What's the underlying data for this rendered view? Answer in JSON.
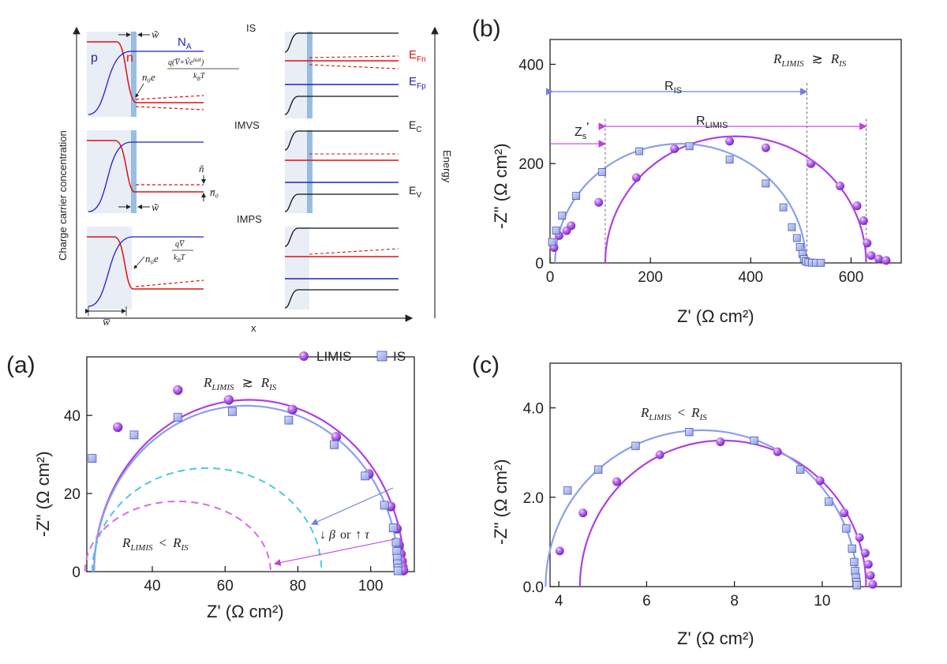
{
  "colors": {
    "limis": "#b040e0",
    "limis_marker": "#a855e8",
    "is": "#8aa0ea",
    "is_marker": "#a8b6f0",
    "dashed_cyan": "#4fc6e6",
    "dashed_magenta": "#d56ce8",
    "red": "#e01010",
    "blue": "#2222c0",
    "shade": "#e9edf6",
    "band": "#7faedb"
  },
  "panel_labels": {
    "a": "(a)",
    "b": "(b)",
    "c": "(c)"
  },
  "schematic": {
    "ylabel": "Charge carrier concentration",
    "xlabel": "x",
    "energy_label": "Energy",
    "row_labels": [
      "IS",
      "IMVS",
      "IMPS"
    ],
    "p_label": "p",
    "n_label": "n",
    "NA_label": "N",
    "NA_sub": "A",
    "w_tilde": "w̃",
    "w_bar": "w̅",
    "n_tilde": "ñ",
    "n0_bar": "n̅₀",
    "is_formula_prefix": "n₀e",
    "is_formula_num": "q(V̅+Ṽe",
    "is_formula_num_sup": "iωt",
    "is_formula_den": "k",
    "is_formula_den_sub": "B",
    "is_formula_den_tail": "T",
    "imps_formula_prefix": "n₀e",
    "imps_formula_num": "qV̅",
    "imps_formula_den": "k",
    "imps_formula_den_sub": "B",
    "imps_formula_den_tail": "T",
    "EFn": "E",
    "EFn_sub": "Fn",
    "EFp": "E",
    "EFp_sub": "Fp",
    "EC": "E",
    "EC_sub": "C",
    "EV": "E",
    "EV_sub": "V"
  },
  "chart_data": [
    {
      "panel": "a",
      "type": "scatter",
      "xlabel": "Z' (Ω cm²)",
      "ylabel": "-Z\" (Ω cm²)",
      "xlim": [
        22,
        112
      ],
      "ylim": [
        0,
        55
      ],
      "xticks": [
        40,
        60,
        80,
        100
      ],
      "yticks": [
        0,
        20,
        40
      ],
      "legend": [
        "LIMIS",
        "IS"
      ],
      "legend_position": "top-right",
      "annotations": [
        "R_LIMIS ≳ R_IS",
        "R_LIMIS < R_IS",
        "↓ β or ↑ τ"
      ],
      "annot_text": {
        "r1": "R",
        "r1_sub": "LIMIS",
        "approx": "≳",
        "r2": "R",
        "r2_sub": "IS",
        "lt": "<",
        "arrow_label_a": "↓ β",
        "arrow_label_or": "or",
        "arrow_label_b": "↑ τ"
      },
      "series": [
        {
          "name": "LIMIS",
          "marker": "sphere",
          "points": [
            [
              30.5,
              37
            ],
            [
              47,
              46.5
            ],
            [
              61,
              44
            ],
            [
              78.5,
              41.5
            ],
            [
              90.5,
              34.5
            ],
            [
              99.5,
              25
            ],
            [
              105.5,
              16.7
            ],
            [
              107.2,
              11
            ],
            [
              107.8,
              6.8
            ],
            [
              108.3,
              4.5
            ],
            [
              108.6,
              2.7
            ],
            [
              108.8,
              1.2
            ],
            [
              109,
              0.3
            ]
          ],
          "fit": {
            "x1": 24,
            "x2": 109.2,
            "ymax": 44
          }
        },
        {
          "name": "IS",
          "marker": "square",
          "points": [
            [
              23.5,
              29
            ],
            [
              35,
              35
            ],
            [
              47,
              39.5
            ],
            [
              62,
              41
            ],
            [
              77.5,
              38.8
            ],
            [
              90,
              32.5
            ],
            [
              98.5,
              24.5
            ],
            [
              103.8,
              17
            ],
            [
              106.2,
              11.2
            ],
            [
              107,
              7.5
            ],
            [
              107.2,
              5.2
            ],
            [
              107.3,
              3.4
            ],
            [
              107.4,
              2
            ],
            [
              107.5,
              0.9
            ],
            [
              107.5,
              0.2
            ]
          ],
          "fit": {
            "x1": 24,
            "x2": 107.6,
            "ymax": 42.5
          }
        },
        {
          "name": "",
          "style": "dashed",
          "color": "dashed_cyan",
          "fit": {
            "x1": 23.5,
            "x2": 86.5,
            "ymax": 26.5
          }
        },
        {
          "name": "",
          "style": "dashed",
          "color": "dashed_magenta",
          "fit": {
            "x1": 21.5,
            "x2": 72.5,
            "ymax": 18
          }
        }
      ]
    },
    {
      "panel": "b",
      "type": "scatter",
      "xlabel": "Z' (Ω cm²)",
      "ylabel": "-Z\" (Ω cm²)",
      "xlim": [
        0,
        700
      ],
      "ylim": [
        0,
        450
      ],
      "xticks": [
        0,
        200,
        400,
        600
      ],
      "yticks": [
        0,
        200,
        400
      ],
      "annotations": [
        "R_LIMIS ≳ R_IS",
        "R_IS",
        "R_LIMIS",
        "Z_s'"
      ],
      "annot_text": {
        "r1": "R",
        "r1_sub": "LIMIS",
        "approx": "≳",
        "r2": "R",
        "r2_sub": "IS",
        "ris": "R",
        "ris_sub": "IS",
        "rlimis": "R",
        "rlimis_sub": "LIMIS",
        "zs": "Z",
        "zs_sub": "s",
        "zs_prime": "'"
      },
      "series": [
        {
          "name": "LIMIS",
          "marker": "sphere",
          "points": [
            [
              8,
              31
            ],
            [
              18,
              55
            ],
            [
              33,
              65
            ],
            [
              42,
              75
            ],
            [
              97,
              122
            ],
            [
              172,
              172
            ],
            [
              248,
              230
            ],
            [
              358,
              245
            ],
            [
              430,
              232
            ],
            [
              520,
              200
            ],
            [
              578,
              155
            ],
            [
              612,
              115
            ],
            [
              625,
              85
            ],
            [
              632,
              40
            ],
            [
              640,
              15
            ],
            [
              655,
              8
            ],
            [
              670,
              5
            ]
          ],
          "fit": {
            "x1": 110,
            "x2": 630,
            "ymax": 255
          }
        },
        {
          "name": "IS",
          "marker": "square",
          "points": [
            [
              4,
              42
            ],
            [
              12,
              65
            ],
            [
              24,
              95
            ],
            [
              52,
              135
            ],
            [
              104,
              183
            ],
            [
              178,
              225
            ],
            [
              278,
              235
            ],
            [
              358,
              208
            ],
            [
              430,
              160
            ],
            [
              465,
              112
            ],
            [
              482,
              72
            ],
            [
              492,
              50
            ],
            [
              498,
              32
            ],
            [
              503,
              18
            ],
            [
              506,
              8
            ],
            [
              510,
              3
            ],
            [
              515,
              1
            ],
            [
              522,
              0.5
            ],
            [
              530,
              0.3
            ],
            [
              540,
              0.2
            ]
          ],
          "fit": {
            "x1": 10,
            "x2": 510,
            "ymax": 240
          }
        }
      ],
      "markers_x": {
        "ris_left": 5,
        "ris_right": 512,
        "rlimis_left": 110,
        "rlimis_right": 630,
        "zs": 110,
        "zs_left": 0
      }
    },
    {
      "panel": "c",
      "type": "scatter",
      "xlabel": "Z' (Ω cm²)",
      "ylabel": "-Z\" (Ω cm²)",
      "xlim": [
        3.8,
        11.8
      ],
      "ylim": [
        0,
        5
      ],
      "xticks": [
        4,
        6,
        8,
        10
      ],
      "yticks": [
        0.0,
        2.0,
        4.0
      ],
      "ytick_labels": [
        "0.0",
        "2.0",
        "4.0"
      ],
      "annotations": [
        "R_LIMIS < R_IS"
      ],
      "annot_text": {
        "r1": "R",
        "r1_sub": "LIMIS",
        "lt": "<",
        "r2": "R",
        "r2_sub": "IS"
      },
      "series": [
        {
          "name": "LIMIS",
          "marker": "sphere",
          "points": [
            [
              4.02,
              0.8
            ],
            [
              4.55,
              1.65
            ],
            [
              5.32,
              2.35
            ],
            [
              6.3,
              2.95
            ],
            [
              7.68,
              3.24
            ],
            [
              8.98,
              3.02
            ],
            [
              9.95,
              2.37
            ],
            [
              10.5,
              1.65
            ],
            [
              10.85,
              1.1
            ],
            [
              10.98,
              0.75
            ],
            [
              11.05,
              0.5
            ],
            [
              11.1,
              0.25
            ],
            [
              11.15,
              0.05
            ]
          ],
          "fit": {
            "x1": 4.48,
            "x2": 11.0,
            "ymax": 3.27
          }
        },
        {
          "name": "IS",
          "marker": "square",
          "points": [
            [
              4.2,
              2.15
            ],
            [
              4.9,
              2.62
            ],
            [
              5.75,
              3.15
            ],
            [
              6.97,
              3.46
            ],
            [
              8.45,
              3.27
            ],
            [
              9.5,
              2.62
            ],
            [
              10.15,
              1.9
            ],
            [
              10.55,
              1.3
            ],
            [
              10.68,
              0.85
            ],
            [
              10.73,
              0.55
            ],
            [
              10.75,
              0.35
            ],
            [
              10.77,
              0.2
            ],
            [
              10.78,
              0.1
            ],
            [
              10.79,
              0.03
            ]
          ],
          "fit": {
            "x1": 3.7,
            "x2": 10.8,
            "ymax": 3.5
          }
        }
      ]
    }
  ]
}
